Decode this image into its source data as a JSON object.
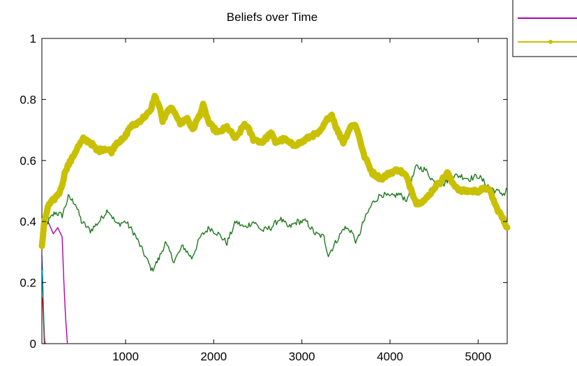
{
  "chart_data": {
    "type": "line",
    "title": "Beliefs over Time",
    "xlabel": "",
    "ylabel": "",
    "xlim": [
      50,
      5330
    ],
    "ylim": [
      0,
      1
    ],
    "xticks": [
      1000,
      2000,
      3000,
      4000,
      5000
    ],
    "xtick_labels": [
      "1000",
      "2000",
      "3000",
      "4000",
      "5000"
    ],
    "yticks": [
      0,
      0.2,
      0.4,
      0.6,
      0.8,
      1
    ],
    "ytick_labels": [
      "0",
      "0.2",
      "0.4",
      "0.6",
      "0.8",
      "1"
    ],
    "grid": false,
    "legend_placement": "top-right, partially cropped",
    "series": [
      {
        "color": "#1a1a8c",
        "style": "thin",
        "points": [
          [
            50,
            0.29
          ],
          [
            60,
            0.2
          ],
          [
            70,
            0.08
          ],
          [
            80,
            0.0
          ]
        ]
      },
      {
        "color": "#00a0c8",
        "style": "thin",
        "points": [
          [
            55,
            0.24
          ],
          [
            65,
            0.14
          ],
          [
            80,
            0.02
          ],
          [
            90,
            0.0
          ]
        ]
      },
      {
        "color": "#c8201e",
        "style": "thin",
        "points": [
          [
            58,
            0.15
          ],
          [
            68,
            0.08
          ],
          [
            78,
            0.0
          ]
        ]
      },
      {
        "color": "#b000b0",
        "style": "thin",
        "legend_marker": "line",
        "points": [
          [
            50,
            0.36
          ],
          [
            120,
            0.4
          ],
          [
            180,
            0.36
          ],
          [
            230,
            0.38
          ],
          [
            280,
            0.35
          ],
          [
            300,
            0.2
          ],
          [
            320,
            0.08
          ],
          [
            340,
            0.0
          ]
        ]
      },
      {
        "color": "#1e781e",
        "style": "thin",
        "points": [
          [
            50,
            0.33
          ],
          [
            120,
            0.4
          ],
          [
            200,
            0.43
          ],
          [
            280,
            0.42
          ],
          [
            350,
            0.48
          ],
          [
            430,
            0.46
          ],
          [
            500,
            0.4
          ],
          [
            600,
            0.37
          ],
          [
            700,
            0.4
          ],
          [
            800,
            0.44
          ],
          [
            900,
            0.39
          ],
          [
            1000,
            0.4
          ],
          [
            1100,
            0.36
          ],
          [
            1200,
            0.3
          ],
          [
            1300,
            0.24
          ],
          [
            1380,
            0.28
          ],
          [
            1450,
            0.33
          ],
          [
            1550,
            0.27
          ],
          [
            1650,
            0.32
          ],
          [
            1750,
            0.28
          ],
          [
            1850,
            0.35
          ],
          [
            1950,
            0.38
          ],
          [
            2050,
            0.36
          ],
          [
            2150,
            0.33
          ],
          [
            2250,
            0.4
          ],
          [
            2350,
            0.38
          ],
          [
            2450,
            0.4
          ],
          [
            2550,
            0.37
          ],
          [
            2650,
            0.38
          ],
          [
            2750,
            0.41
          ],
          [
            2850,
            0.38
          ],
          [
            2950,
            0.4
          ],
          [
            3050,
            0.4
          ],
          [
            3150,
            0.36
          ],
          [
            3250,
            0.35
          ],
          [
            3300,
            0.29
          ],
          [
            3380,
            0.33
          ],
          [
            3480,
            0.38
          ],
          [
            3560,
            0.37
          ],
          [
            3620,
            0.33
          ],
          [
            3700,
            0.4
          ],
          [
            3800,
            0.46
          ],
          [
            3900,
            0.49
          ],
          [
            4000,
            0.48
          ],
          [
            4100,
            0.49
          ],
          [
            4200,
            0.47
          ],
          [
            4250,
            0.54
          ],
          [
            4300,
            0.58
          ],
          [
            4400,
            0.57
          ],
          [
            4500,
            0.53
          ],
          [
            4600,
            0.52
          ],
          [
            4700,
            0.55
          ],
          [
            4800,
            0.55
          ],
          [
            4900,
            0.54
          ],
          [
            5000,
            0.55
          ],
          [
            5100,
            0.52
          ],
          [
            5200,
            0.5
          ],
          [
            5300,
            0.49
          ],
          [
            5330,
            0.51
          ]
        ]
      },
      {
        "color": "#c8c000",
        "style": "thick",
        "legend_marker": "line-dot",
        "points": [
          [
            50,
            0.32
          ],
          [
            80,
            0.4
          ],
          [
            120,
            0.45
          ],
          [
            180,
            0.47
          ],
          [
            260,
            0.5
          ],
          [
            320,
            0.57
          ],
          [
            380,
            0.6
          ],
          [
            450,
            0.64
          ],
          [
            520,
            0.67
          ],
          [
            600,
            0.66
          ],
          [
            680,
            0.63
          ],
          [
            760,
            0.64
          ],
          [
            840,
            0.63
          ],
          [
            900,
            0.66
          ],
          [
            980,
            0.67
          ],
          [
            1050,
            0.71
          ],
          [
            1120,
            0.72
          ],
          [
            1200,
            0.74
          ],
          [
            1280,
            0.76
          ],
          [
            1330,
            0.81
          ],
          [
            1380,
            0.78
          ],
          [
            1420,
            0.73
          ],
          [
            1500,
            0.77
          ],
          [
            1560,
            0.76
          ],
          [
            1620,
            0.72
          ],
          [
            1700,
            0.74
          ],
          [
            1760,
            0.7
          ],
          [
            1840,
            0.75
          ],
          [
            1880,
            0.78
          ],
          [
            1950,
            0.72
          ],
          [
            2050,
            0.69
          ],
          [
            2150,
            0.71
          ],
          [
            2250,
            0.67
          ],
          [
            2350,
            0.72
          ],
          [
            2400,
            0.7
          ],
          [
            2450,
            0.67
          ],
          [
            2550,
            0.66
          ],
          [
            2650,
            0.69
          ],
          [
            2700,
            0.66
          ],
          [
            2800,
            0.67
          ],
          [
            2900,
            0.65
          ],
          [
            3000,
            0.66
          ],
          [
            3100,
            0.68
          ],
          [
            3200,
            0.69
          ],
          [
            3300,
            0.74
          ],
          [
            3340,
            0.75
          ],
          [
            3400,
            0.7
          ],
          [
            3470,
            0.66
          ],
          [
            3550,
            0.71
          ],
          [
            3600,
            0.72
          ],
          [
            3650,
            0.68
          ],
          [
            3700,
            0.62
          ],
          [
            3800,
            0.56
          ],
          [
            3900,
            0.54
          ],
          [
            4000,
            0.56
          ],
          [
            4100,
            0.57
          ],
          [
            4180,
            0.55
          ],
          [
            4250,
            0.5
          ],
          [
            4300,
            0.46
          ],
          [
            4400,
            0.47
          ],
          [
            4500,
            0.51
          ],
          [
            4600,
            0.54
          ],
          [
            4650,
            0.56
          ],
          [
            4700,
            0.53
          ],
          [
            4800,
            0.5
          ],
          [
            4900,
            0.5
          ],
          [
            5000,
            0.5
          ],
          [
            5100,
            0.51
          ],
          [
            5150,
            0.49
          ],
          [
            5200,
            0.45
          ],
          [
            5260,
            0.42
          ],
          [
            5330,
            0.38
          ]
        ]
      }
    ]
  }
}
